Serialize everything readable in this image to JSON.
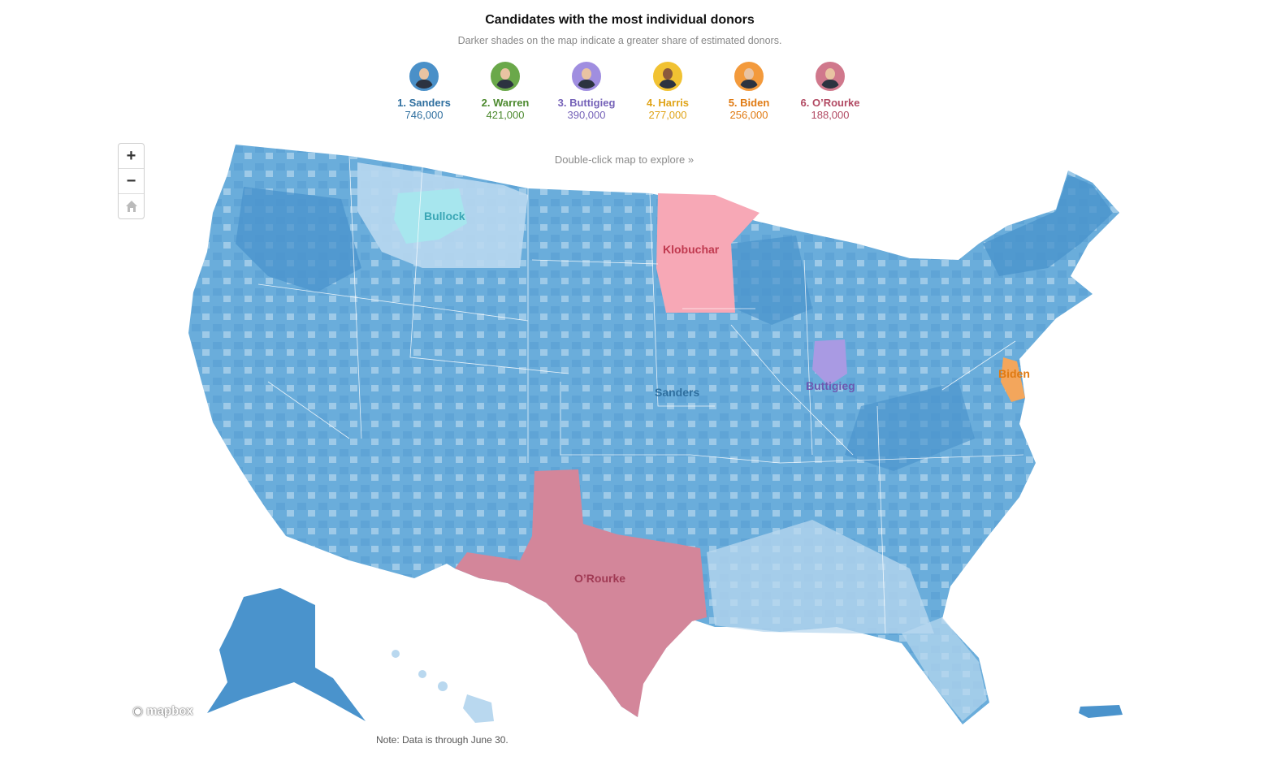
{
  "header": {
    "title": "Candidates with the most individual donors",
    "subtitle": "Darker shades on the map indicate a greater share of estimated donors."
  },
  "candidates": [
    {
      "label": "1. Sanders",
      "count": "746,000",
      "color": "#2f6f9f",
      "ring": "#4a90c8"
    },
    {
      "label": "2. Warren",
      "count": "421,000",
      "color": "#4d8a2f",
      "ring": "#6aa84a"
    },
    {
      "label": "3. Buttigieg",
      "count": "390,000",
      "color": "#7562b8",
      "ring": "#a08ee0"
    },
    {
      "label": "4. Harris",
      "count": "277,000",
      "color": "#e0a418",
      "ring": "#f1c232"
    },
    {
      "label": "5. Biden",
      "count": "256,000",
      "color": "#e07a12",
      "ring": "#f39a3c"
    },
    {
      "label": "6. O’Rourke",
      "count": "188,000",
      "color": "#b24a63",
      "ring": "#d0788c"
    }
  ],
  "controls": {
    "zoom_in": "+",
    "zoom_out": "−",
    "home_icon": "home-icon"
  },
  "hint": "Double-click map to explore »",
  "map_labels": {
    "bullock": "Bullock",
    "klobuchar": "Klobuchar",
    "sanders": "Sanders",
    "buttigieg": "Buttigieg",
    "biden": "Biden",
    "orourke": "O’Rourke"
  },
  "map_colors": {
    "sanders": "#6aaddb",
    "sanders_dark": "#4a93cc",
    "sanders_light": "#b9d8ef",
    "bullock": "#a7e6ee",
    "klobuchar": "#f7a8b6",
    "buttigieg": "#a99ae3",
    "biden": "#f3a65c",
    "orourke": "#d3869a"
  },
  "attribution": "mapbox",
  "note": "Note: Data is through June 30."
}
